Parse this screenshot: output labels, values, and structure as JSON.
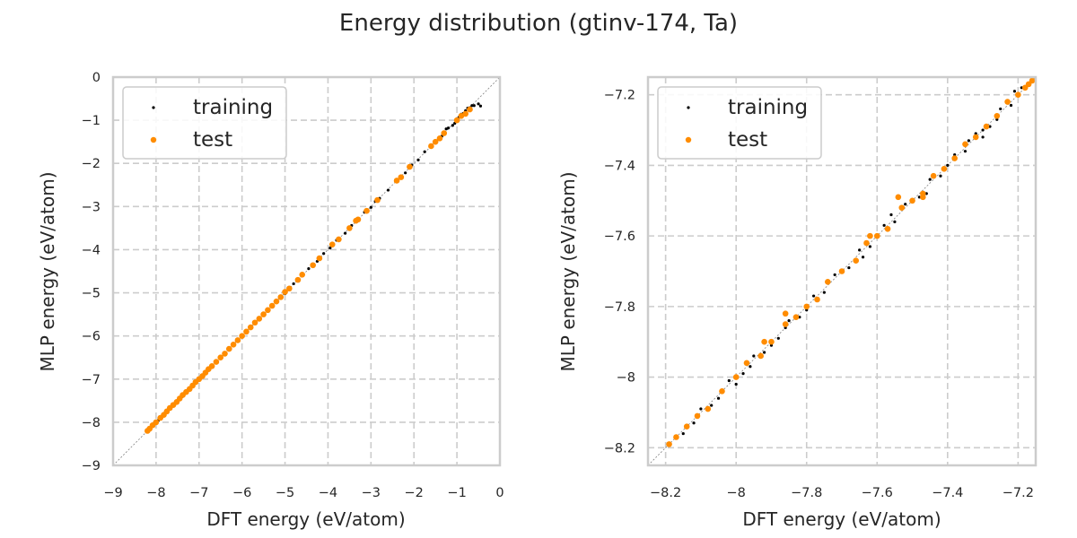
{
  "figure": {
    "title": "Energy distribution (gtinv-174, Ta)"
  },
  "colors": {
    "training": "#000000",
    "test": "#ff8c00",
    "grid": "#cccccc",
    "spine": "#cccccc"
  },
  "chart_data": [
    {
      "type": "scatter",
      "title": "",
      "xlabel": "DFT energy (eV/atom)",
      "ylabel": "MLP energy (eV/atom)",
      "xlim": [
        -9,
        0
      ],
      "ylim": [
        -9,
        0
      ],
      "xticks": [
        -9,
        -8,
        -7,
        -6,
        -5,
        -4,
        -3,
        -2,
        -1,
        0
      ],
      "yticks": [
        -9,
        -8,
        -7,
        -6,
        -5,
        -4,
        -3,
        -2,
        -1,
        0
      ],
      "grid": true,
      "legend": "top-left",
      "diagonal": true,
      "series": [
        {
          "name": "training",
          "color": "#000000",
          "marker": "small-dot",
          "points": [
            [
              -8.18,
              -8.19
            ],
            [
              -8.1,
              -8.11
            ],
            [
              -7.95,
              -7.96
            ],
            [
              -7.8,
              -7.79
            ],
            [
              -7.6,
              -7.61
            ],
            [
              -7.4,
              -7.41
            ],
            [
              -7.2,
              -7.2
            ],
            [
              -7.0,
              -7.01
            ],
            [
              -6.8,
              -6.8
            ],
            [
              -6.6,
              -6.61
            ],
            [
              -6.4,
              -6.39
            ],
            [
              -6.2,
              -6.21
            ],
            [
              -6.0,
              -6.0
            ],
            [
              -5.8,
              -5.81
            ],
            [
              -5.6,
              -5.6
            ],
            [
              -5.4,
              -5.41
            ],
            [
              -5.2,
              -5.19
            ],
            [
              -5.0,
              -5.02
            ],
            [
              -4.8,
              -4.79
            ],
            [
              -4.6,
              -4.6
            ],
            [
              -4.45,
              -4.44
            ],
            [
              -4.25,
              -4.27
            ],
            [
              -4.1,
              -4.09
            ],
            [
              -3.95,
              -3.96
            ],
            [
              -3.8,
              -3.78
            ],
            [
              -3.6,
              -3.62
            ],
            [
              -3.45,
              -3.44
            ],
            [
              -3.3,
              -3.31
            ],
            [
              -3.15,
              -3.13
            ],
            [
              -3.0,
              -3.02
            ],
            [
              -2.9,
              -2.88
            ],
            [
              -2.8,
              -2.81
            ],
            [
              -2.6,
              -2.62
            ],
            [
              -2.4,
              -2.38
            ],
            [
              -2.2,
              -2.22
            ],
            [
              -2.05,
              -2.04
            ],
            [
              -1.9,
              -1.92
            ],
            [
              -1.75,
              -1.73
            ],
            [
              -1.6,
              -1.62
            ],
            [
              -1.5,
              -1.47
            ],
            [
              -1.35,
              -1.37
            ],
            [
              -1.2,
              -1.18
            ],
            [
              -1.1,
              -1.12
            ],
            [
              -1.0,
              -0.97
            ],
            [
              -0.95,
              -0.93
            ],
            [
              -0.9,
              -0.86
            ],
            [
              -0.85,
              -0.84
            ],
            [
              -0.8,
              -0.78
            ],
            [
              -0.75,
              -0.72
            ],
            [
              -0.7,
              -0.71
            ],
            [
              -0.65,
              -0.66
            ],
            [
              -0.6,
              -0.66
            ],
            [
              -0.5,
              -0.62
            ],
            [
              -0.45,
              -0.67
            ],
            [
              -1.05,
              -1.07
            ],
            [
              -1.25,
              -1.2
            ]
          ]
        },
        {
          "name": "test",
          "color": "#ff8c00",
          "marker": "dot",
          "points": [
            [
              -8.2,
              -8.2
            ],
            [
              -8.15,
              -8.15
            ],
            [
              -8.08,
              -8.07
            ],
            [
              -8.0,
              -8.0
            ],
            [
              -7.9,
              -7.9
            ],
            [
              -7.82,
              -7.83
            ],
            [
              -7.75,
              -7.75
            ],
            [
              -7.68,
              -7.67
            ],
            [
              -7.6,
              -7.6
            ],
            [
              -7.52,
              -7.53
            ],
            [
              -7.45,
              -7.45
            ],
            [
              -7.38,
              -7.37
            ],
            [
              -7.3,
              -7.3
            ],
            [
              -7.22,
              -7.23
            ],
            [
              -7.15,
              -7.15
            ],
            [
              -7.08,
              -7.07
            ],
            [
              -7.0,
              -7.0
            ],
            [
              -6.92,
              -6.93
            ],
            [
              -6.85,
              -6.85
            ],
            [
              -6.78,
              -6.77
            ],
            [
              -6.7,
              -6.7
            ],
            [
              -6.6,
              -6.6
            ],
            [
              -6.5,
              -6.5
            ],
            [
              -6.4,
              -6.41
            ],
            [
              -6.3,
              -6.3
            ],
            [
              -6.2,
              -6.2
            ],
            [
              -6.1,
              -6.1
            ],
            [
              -6.0,
              -6.0
            ],
            [
              -5.9,
              -5.9
            ],
            [
              -5.8,
              -5.8
            ],
            [
              -5.7,
              -5.69
            ],
            [
              -5.6,
              -5.6
            ],
            [
              -5.5,
              -5.5
            ],
            [
              -5.4,
              -5.4
            ],
            [
              -5.3,
              -5.3
            ],
            [
              -5.2,
              -5.2
            ],
            [
              -5.1,
              -5.1
            ],
            [
              -5.0,
              -4.98
            ],
            [
              -4.9,
              -4.9
            ],
            [
              -4.7,
              -4.7
            ],
            [
              -4.6,
              -4.58
            ],
            [
              -4.35,
              -4.36
            ],
            [
              -4.2,
              -4.2
            ],
            [
              -3.9,
              -3.88
            ],
            [
              -3.75,
              -3.76
            ],
            [
              -3.5,
              -3.5
            ],
            [
              -3.35,
              -3.33
            ],
            [
              -3.3,
              -3.3
            ],
            [
              -3.1,
              -3.1
            ],
            [
              -2.85,
              -2.85
            ],
            [
              -2.4,
              -2.4
            ],
            [
              -2.3,
              -2.32
            ],
            [
              -2.1,
              -2.08
            ],
            [
              -1.6,
              -1.6
            ],
            [
              -1.5,
              -1.5
            ],
            [
              -1.4,
              -1.42
            ],
            [
              -1.3,
              -1.3
            ],
            [
              -1.0,
              -1.0
            ],
            [
              -0.9,
              -0.9
            ],
            [
              -0.8,
              -0.85
            ],
            [
              -0.7,
              -0.75
            ]
          ]
        }
      ]
    },
    {
      "type": "scatter",
      "title": "",
      "xlabel": "DFT energy (eV/atom)",
      "ylabel": "MLP energy (eV/atom)",
      "xlim": [
        -8.25,
        -7.15
      ],
      "ylim": [
        -8.25,
        -7.15
      ],
      "xticks": [
        -8.2,
        -8.0,
        -7.8,
        -7.6,
        -7.4,
        -7.2
      ],
      "yticks": [
        -8.2,
        -8.0,
        -7.8,
        -7.6,
        -7.4,
        -7.2
      ],
      "grid": true,
      "legend": "top-left",
      "diagonal": true,
      "series": [
        {
          "name": "training",
          "color": "#000000",
          "marker": "small-dot",
          "points": [
            [
              -8.19,
              -8.19
            ],
            [
              -8.15,
              -8.16
            ],
            [
              -8.1,
              -8.09
            ],
            [
              -8.05,
              -8.06
            ],
            [
              -8.02,
              -8.01
            ],
            [
              -7.98,
              -7.99
            ],
            [
              -7.95,
              -7.94
            ],
            [
              -7.92,
              -7.93
            ],
            [
              -7.88,
              -7.89
            ],
            [
              -7.85,
              -7.84
            ],
            [
              -7.82,
              -7.83
            ],
            [
              -7.78,
              -7.77
            ],
            [
              -7.75,
              -7.76
            ],
            [
              -7.72,
              -7.71
            ],
            [
              -7.68,
              -7.69
            ],
            [
              -7.65,
              -7.64
            ],
            [
              -7.62,
              -7.63
            ],
            [
              -7.58,
              -7.57
            ],
            [
              -7.55,
              -7.56
            ],
            [
              -7.52,
              -7.51
            ],
            [
              -7.48,
              -7.49
            ],
            [
              -7.45,
              -7.44
            ],
            [
              -7.42,
              -7.43
            ],
            [
              -7.38,
              -7.37
            ],
            [
              -7.35,
              -7.36
            ],
            [
              -7.32,
              -7.31
            ],
            [
              -7.28,
              -7.29
            ],
            [
              -7.25,
              -7.24
            ],
            [
              -7.22,
              -7.23
            ],
            [
              -7.19,
              -7.18
            ],
            [
              -7.17,
              -7.17
            ],
            [
              -8.07,
              -8.08
            ],
            [
              -7.96,
              -7.97
            ],
            [
              -7.86,
              -7.86
            ],
            [
              -7.7,
              -7.7
            ],
            [
              -7.6,
              -7.6
            ],
            [
              -7.5,
              -7.5
            ],
            [
              -7.4,
              -7.4
            ],
            [
              -7.3,
              -7.3
            ],
            [
              -7.2,
              -7.2
            ],
            [
              -7.46,
              -7.48
            ],
            [
              -7.34,
              -7.33
            ],
            [
              -7.26,
              -7.27
            ],
            [
              -7.64,
              -7.66
            ],
            [
              -7.9,
              -7.91
            ],
            [
              -8.0,
              -8.02
            ],
            [
              -7.56,
              -7.54
            ],
            [
              -7.3,
              -7.32
            ],
            [
              -7.21,
              -7.19
            ],
            [
              -7.8,
              -7.81
            ],
            [
              -8.12,
              -8.13
            ]
          ]
        },
        {
          "name": "test",
          "color": "#ff8c00",
          "marker": "dot",
          "points": [
            [
              -8.19,
              -8.19
            ],
            [
              -8.17,
              -8.17
            ],
            [
              -8.14,
              -8.14
            ],
            [
              -8.11,
              -8.11
            ],
            [
              -8.08,
              -8.09
            ],
            [
              -8.04,
              -8.04
            ],
            [
              -8.0,
              -8.0
            ],
            [
              -7.97,
              -7.96
            ],
            [
              -7.93,
              -7.94
            ],
            [
              -7.9,
              -7.9
            ],
            [
              -7.86,
              -7.85
            ],
            [
              -7.83,
              -7.83
            ],
            [
              -7.8,
              -7.8
            ],
            [
              -7.77,
              -7.78
            ],
            [
              -7.74,
              -7.73
            ],
            [
              -7.7,
              -7.7
            ],
            [
              -7.66,
              -7.67
            ],
            [
              -7.63,
              -7.62
            ],
            [
              -7.6,
              -7.6
            ],
            [
              -7.57,
              -7.58
            ],
            [
              -7.53,
              -7.52
            ],
            [
              -7.5,
              -7.5
            ],
            [
              -7.47,
              -7.48
            ],
            [
              -7.44,
              -7.43
            ],
            [
              -7.41,
              -7.41
            ],
            [
              -7.38,
              -7.38
            ],
            [
              -7.35,
              -7.34
            ],
            [
              -7.32,
              -7.32
            ],
            [
              -7.29,
              -7.29
            ],
            [
              -7.26,
              -7.26
            ],
            [
              -7.23,
              -7.22
            ],
            [
              -7.2,
              -7.2
            ],
            [
              -7.18,
              -7.18
            ],
            [
              -7.16,
              -7.16
            ],
            [
              -7.17,
              -7.17
            ],
            [
              -7.92,
              -7.9
            ],
            [
              -7.86,
              -7.82
            ],
            [
              -7.54,
              -7.49
            ],
            [
              -7.47,
              -7.49
            ],
            [
              -7.62,
              -7.6
            ]
          ]
        }
      ]
    }
  ]
}
